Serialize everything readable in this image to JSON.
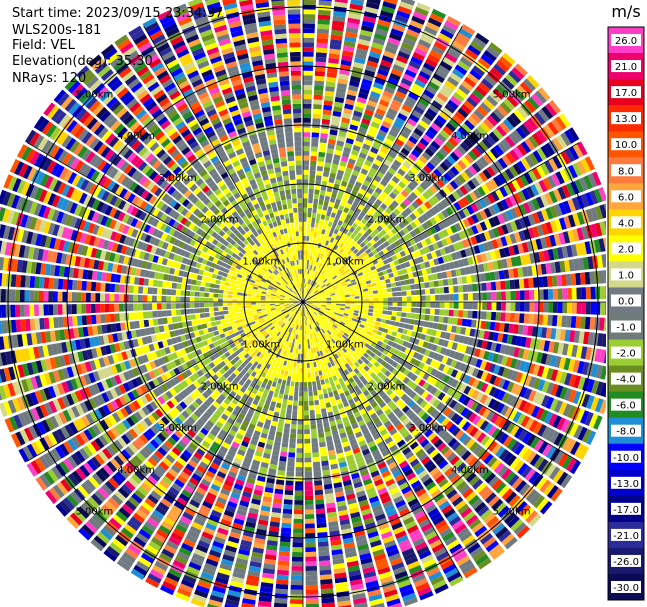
{
  "header": {
    "start_time": "Start time: 2023/09/15 23:34:37",
    "instrument": "WLS200s-181",
    "field": "Field: VEL",
    "elevation": "Elevation(deg): 35.30",
    "nrays": "NRays: 120"
  },
  "chart_data": {
    "type": "heatmap",
    "subtype": "polar-ppi",
    "field": "VEL",
    "units": "m/s",
    "nrays": 120,
    "range_km": [
      0,
      5.4
    ],
    "range_rings_km": [
      1,
      2,
      3,
      4,
      5
    ],
    "range_ring_labels": [
      "1.00km",
      "2.00km",
      "3.00km",
      "4.00km",
      "5.00km"
    ],
    "label_quadrants": [
      "top-left",
      "top-right",
      "bottom-left",
      "bottom-right"
    ],
    "colorbar": {
      "title": "m/s",
      "tick_labels": [
        "26.0",
        "21.0",
        "17.0",
        "13.0",
        "10.0",
        "8.0",
        "6.0",
        "4.0",
        "2.0",
        "1.0",
        "0.0",
        "-1.0",
        "-2.0",
        "-4.0",
        "-6.0",
        "-8.0",
        "-10.0",
        "-13.0",
        "-17.0",
        "-21.0",
        "-26.0",
        "-30.0"
      ],
      "colors": [
        "#ff3ec8",
        "#f0006c",
        "#e8001e",
        "#ff2a00",
        "#ff5500",
        "#ff7a3d",
        "#ffa53d",
        "#ffd400",
        "#ffff00",
        "#d4d88a",
        "#707a82",
        "#6e7b78",
        "#9acd32",
        "#6b8e23",
        "#228b22",
        "#1e8fd6",
        "#0000ff",
        "#0000cd",
        "#00008b",
        "#2b2b9a",
        "#191970",
        "#0a0a55"
      ]
    }
  }
}
